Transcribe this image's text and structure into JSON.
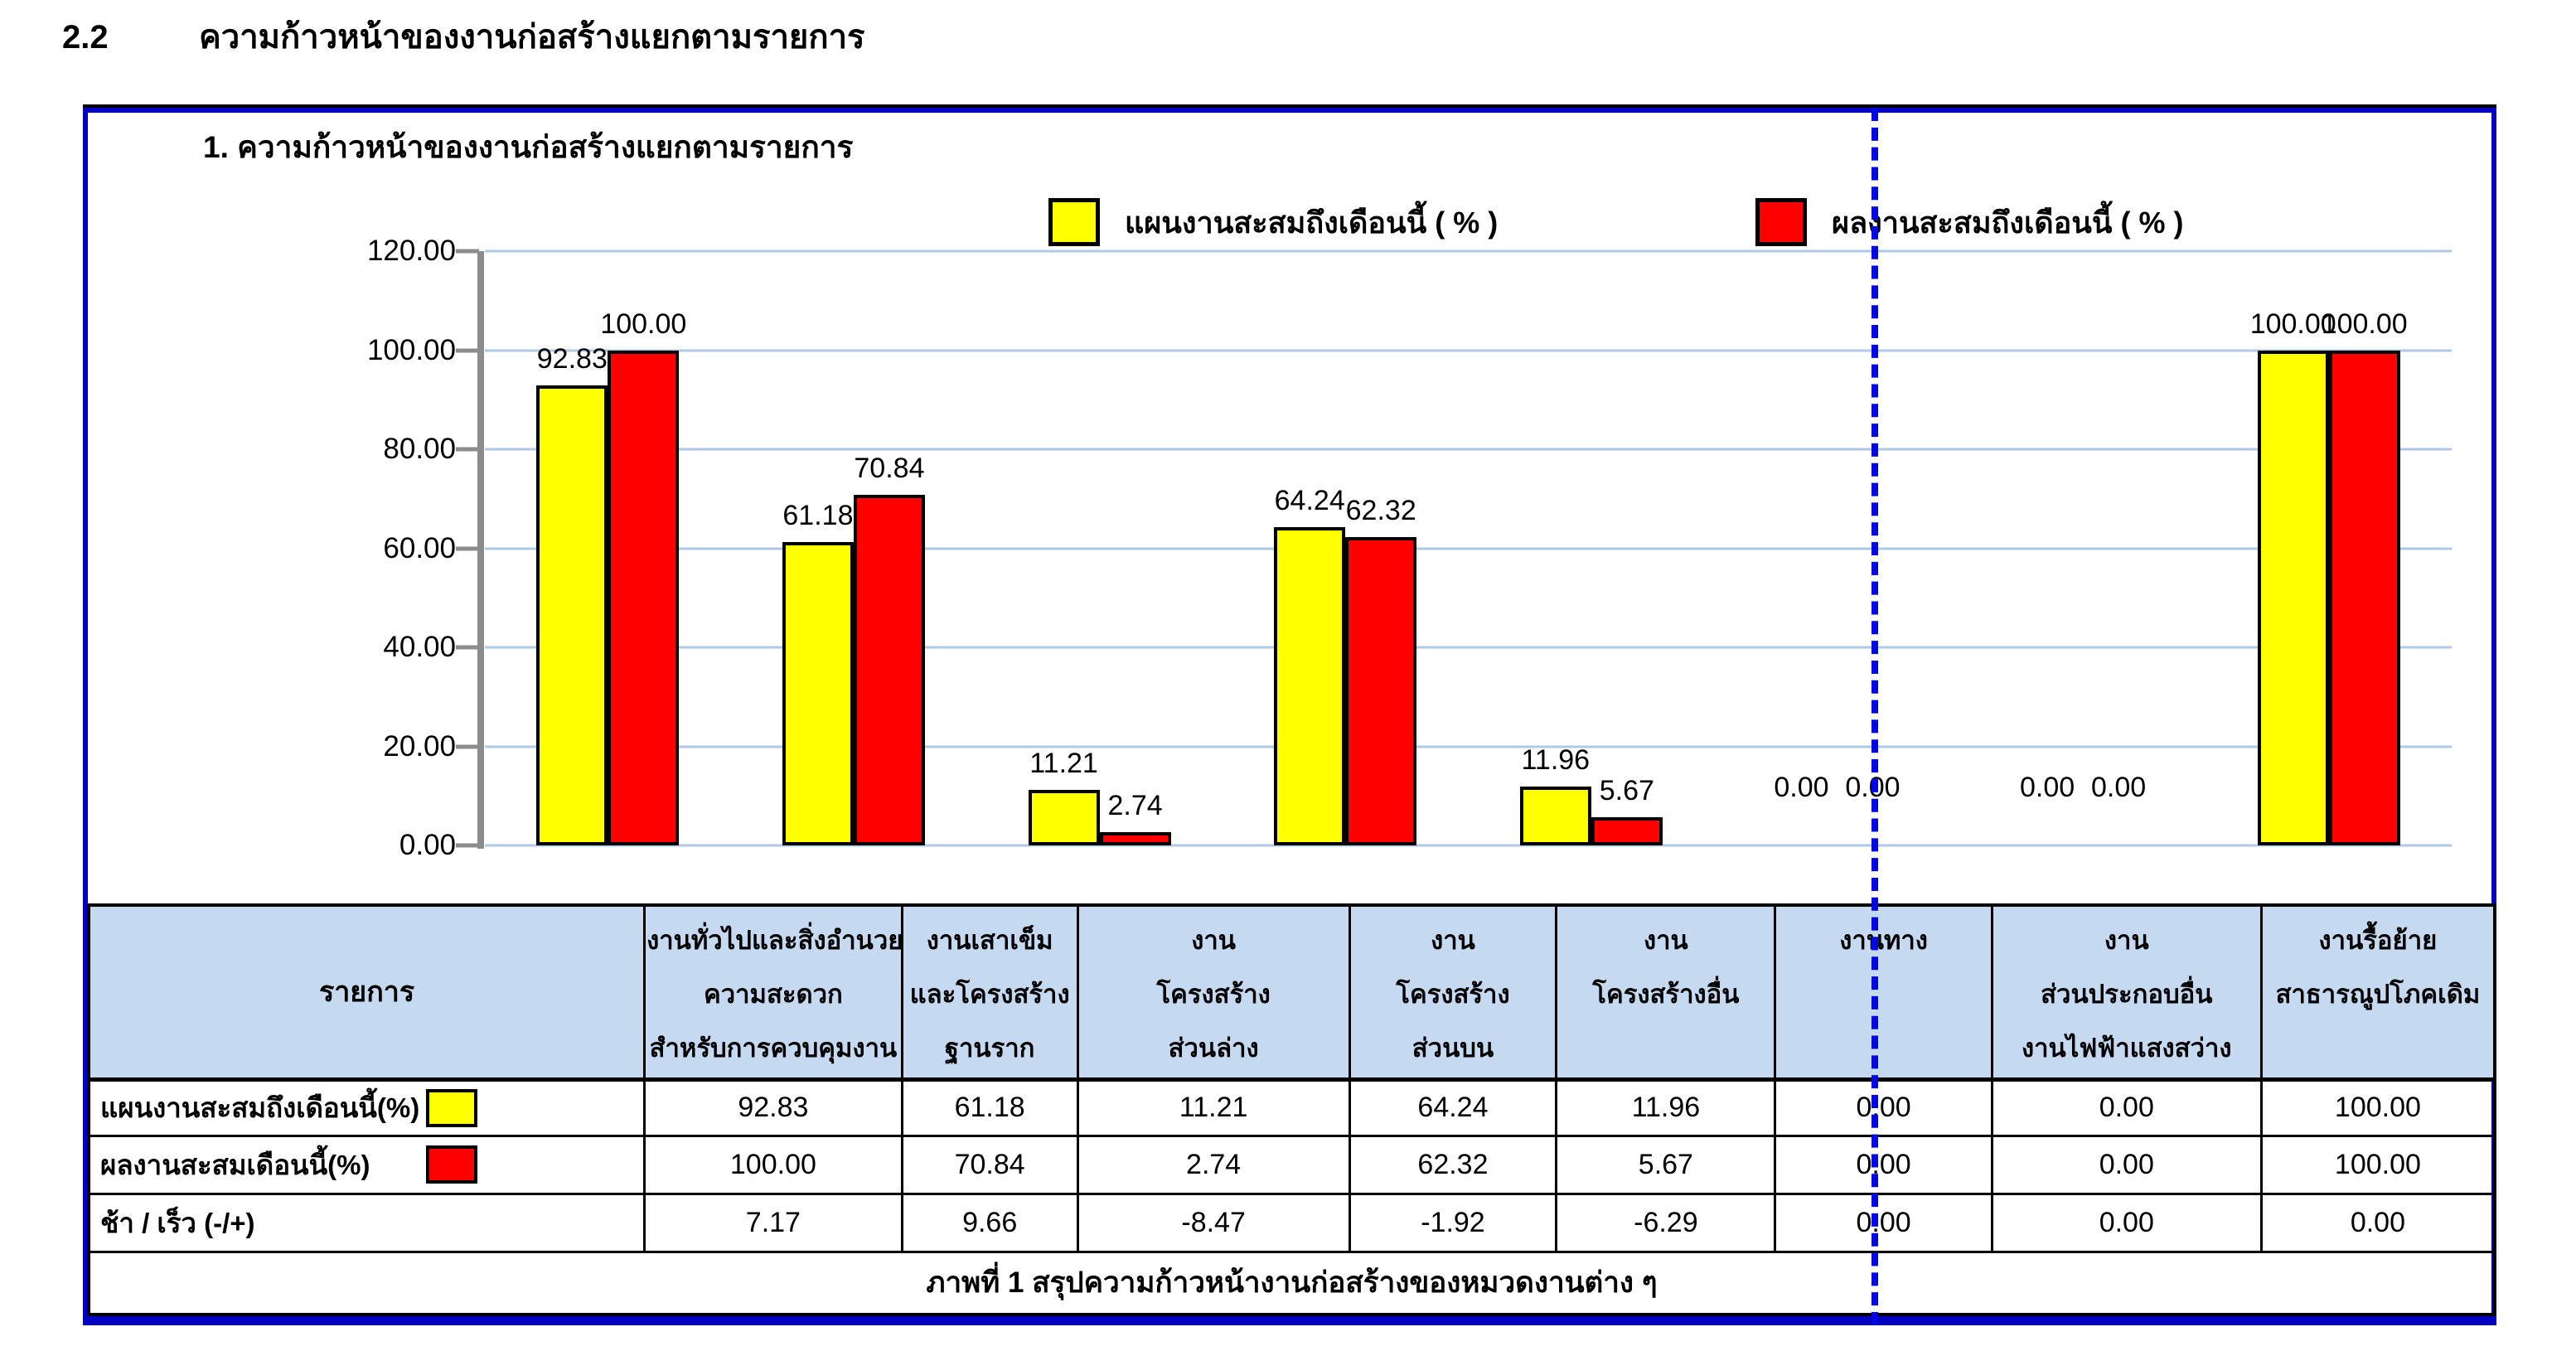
{
  "page": {
    "section_number": "2.2",
    "section_title": "ความก้าวหน้าของงานก่อสร้างแยกตามรายการ"
  },
  "chart_data": {
    "type": "bar",
    "title": "1. ความก้าวหน้าของงานก่อสร้างแยกตามรายการ",
    "categories": [
      "งานทั่วไปและสิ่งอำนวยความสะดวกสำหรับการควบคุมงาน",
      "งานเสาเข็มและโครงสร้างฐานราก",
      "งานโครงสร้างส่วนล่าง",
      "งานโครงสร้างส่วนบน",
      "งานโครงสร้างอื่น",
      "งานทาง",
      "งานส่วนประกอบอื่น งานไฟฟ้าแสงสว่าง",
      "งานรื้อย้ายสาธารณูปโภคเดิม"
    ],
    "series": [
      {
        "name": "แผนงานสะสมถึงเดือนนี้ ( % )",
        "color": "#FFFF00",
        "values": [
          92.83,
          61.18,
          11.21,
          64.24,
          11.96,
          0,
          0,
          100
        ],
        "labels": [
          "92.83",
          "61.18",
          "11.21",
          "64.24",
          "11.96",
          "0.00",
          "0.00",
          "100.00"
        ]
      },
      {
        "name": "ผลงานสะสมถึงเดือนนี้ ( % )",
        "color": "#FF0000",
        "values": [
          100,
          70.84,
          2.74,
          62.32,
          5.67,
          0,
          0,
          100
        ],
        "labels": [
          "100.00",
          "70.84",
          "2.74",
          "62.32",
          "5.67",
          "0.00",
          "0.00",
          "100.00"
        ]
      }
    ],
    "ylim": [
      0,
      120
    ],
    "yticks": [
      "0.00",
      "20.00",
      "40.00",
      "60.00",
      "80.00",
      "100.00",
      "120.00"
    ],
    "grid": true,
    "legend_position": "top"
  },
  "table": {
    "first_col_header": "รายการ",
    "col_headers": [
      [
        "งานทั่วไปและสิ่งอำนวย",
        "ความสะดวก",
        "สำหรับการควบคุมงาน"
      ],
      [
        "งานเสาเข็ม",
        "และโครงสร้าง",
        "ฐานราก"
      ],
      [
        "งาน",
        "โครงสร้าง",
        "ส่วนล่าง"
      ],
      [
        "งาน",
        "โครงสร้าง",
        "ส่วนบน"
      ],
      [
        "งาน",
        "โครงสร้างอื่น"
      ],
      [
        "งานทาง"
      ],
      [
        "งาน",
        "ส่วนประกอบอื่น",
        "งานไฟฟ้าแสงสว่าง"
      ],
      [
        "งานรื้อย้าย",
        "สาธารณูปโภคเดิม"
      ]
    ],
    "rows": [
      {
        "label": "แผนงานสะสมถึงเดือนนี้(%)",
        "swatch": "#FFFF00",
        "values": [
          "92.83",
          "61.18",
          "11.21",
          "64.24",
          "11.96",
          "0.00",
          "0.00",
          "100.00"
        ]
      },
      {
        "label": "ผลงานสะสมเดือนนี้(%)",
        "swatch": "#FF0000",
        "values": [
          "100.00",
          "70.84",
          "2.74",
          "62.32",
          "5.67",
          "0.00",
          "0.00",
          "100.00"
        ]
      },
      {
        "label": "ช้า / เร็ว  (-/+)",
        "swatch": null,
        "values": [
          "7.17",
          "9.66",
          "-8.47",
          "-1.92",
          "-6.29",
          "0.00",
          "0.00",
          "0.00"
        ]
      }
    ],
    "caption": "ภาพที่ 1 สรุปความก้าวหน้างานก่อสร้างของหมวดงานต่าง ๆ"
  },
  "colors": {
    "bar_plan": "#FFFF00",
    "bar_actual": "#FF0000",
    "frame_border": "#0000C4",
    "page_break_line": "#0008E0",
    "table_header_fill": "#C5D9F1",
    "gridline": "#AFC9E6",
    "axis": "#8C8C8C"
  }
}
